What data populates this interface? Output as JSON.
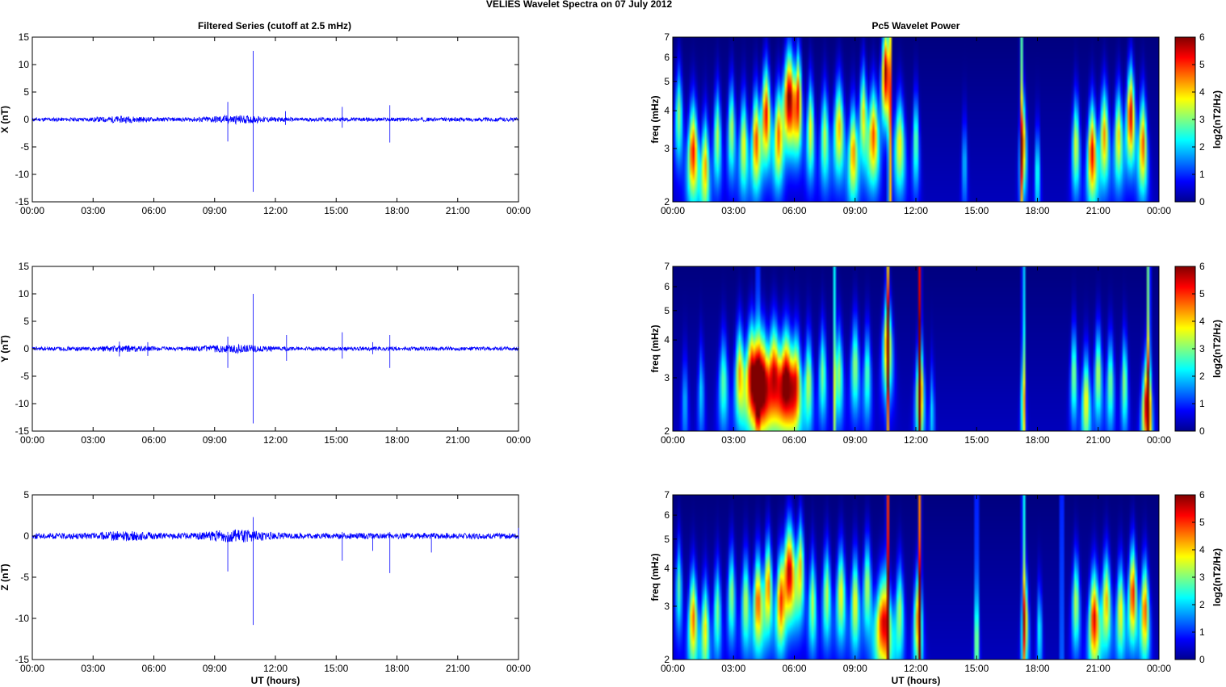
{
  "figure": {
    "title": "VELIES Wavelet Spectra on 07 July      2012"
  },
  "chart_data": [
    {
      "type": "line",
      "title": "Filtered Series (cutoff at 2.5 mHz)",
      "ylabel": "X (nT)",
      "xlabel": "",
      "xticks": [
        "00:00",
        "03:00",
        "06:00",
        "09:00",
        "12:00",
        "15:00",
        "18:00",
        "21:00",
        "00:00"
      ],
      "xlim": [
        0,
        24
      ],
      "ylim": [
        -15,
        15
      ],
      "yticks": [
        -15,
        -10,
        -5,
        0,
        5,
        10,
        15
      ],
      "color": "#0000ff",
      "grid": false,
      "noise_amplitude": 0.35,
      "spikes": [
        {
          "x": 9.65,
          "top": 3.2,
          "bottom": -4.0
        },
        {
          "x": 10.9,
          "top": 12.5,
          "bottom": -13.2
        },
        {
          "x": 12.5,
          "top": 1.5,
          "bottom": -1.0
        },
        {
          "x": 15.3,
          "top": 2.3,
          "bottom": -1.5
        },
        {
          "x": 17.65,
          "top": 2.6,
          "bottom": -4.2
        }
      ]
    },
    {
      "type": "line",
      "title": "",
      "ylabel": "Y (nT)",
      "xlabel": "",
      "xticks": [
        "00:00",
        "03:00",
        "06:00",
        "09:00",
        "12:00",
        "15:00",
        "18:00",
        "21:00",
        "00:00"
      ],
      "xlim": [
        0,
        24
      ],
      "ylim": [
        -15,
        15
      ],
      "yticks": [
        -15,
        -10,
        -5,
        0,
        5,
        10,
        15
      ],
      "color": "#0000ff",
      "grid": false,
      "noise_amplitude": 0.35,
      "spikes": [
        {
          "x": 4.3,
          "top": 1.3,
          "bottom": -1.4
        },
        {
          "x": 5.7,
          "top": 1.2,
          "bottom": -1.3
        },
        {
          "x": 9.65,
          "top": 2.2,
          "bottom": -3.5
        },
        {
          "x": 10.9,
          "top": 10.0,
          "bottom": -13.6
        },
        {
          "x": 12.55,
          "top": 2.5,
          "bottom": -2.2
        },
        {
          "x": 15.3,
          "top": 3.0,
          "bottom": -1.8
        },
        {
          "x": 16.8,
          "top": 1.2,
          "bottom": -1.0
        },
        {
          "x": 17.65,
          "top": 2.5,
          "bottom": -3.5
        }
      ]
    },
    {
      "type": "line",
      "title": "",
      "ylabel": "Z (nT)",
      "xlabel": "UT (hours)",
      "xticks": [
        "00:00",
        "03:00",
        "06:00",
        "09:00",
        "12:00",
        "15:00",
        "18:00",
        "21:00",
        "00:00"
      ],
      "xlim": [
        0,
        24
      ],
      "ylim": [
        -15,
        5
      ],
      "yticks": [
        -15,
        -10,
        -5,
        0,
        5
      ],
      "color": "#0000ff",
      "grid": false,
      "noise_amplitude": 0.35,
      "spikes": [
        {
          "x": 9.65,
          "top": 0.5,
          "bottom": -4.3
        },
        {
          "x": 10.9,
          "top": 2.3,
          "bottom": -10.8
        },
        {
          "x": 15.3,
          "top": 0.5,
          "bottom": -3.0
        },
        {
          "x": 16.8,
          "top": 0.3,
          "bottom": -1.8
        },
        {
          "x": 17.65,
          "top": 0.5,
          "bottom": -4.5
        },
        {
          "x": 19.7,
          "top": 0.3,
          "bottom": -2.0
        },
        {
          "x": 24.0,
          "top": 1.0,
          "bottom": -0.3
        }
      ]
    },
    {
      "type": "heatmap",
      "title": "Pc5 Wavelet Power",
      "ylabel": "freq (mHz)",
      "xlabel": "",
      "xticks": [
        "00:00",
        "03:00",
        "06:00",
        "09:00",
        "12:00",
        "15:00",
        "18:00",
        "21:00",
        "00:00"
      ],
      "xlim": [
        0,
        24
      ],
      "ylim": [
        2,
        7
      ],
      "yscale": "log",
      "yticks": [
        2,
        3,
        4,
        5,
        6,
        7
      ],
      "colorbar": {
        "label": "log2(nT2/Hz)",
        "ticks": [
          0,
          1,
          2,
          3,
          4,
          5,
          6
        ],
        "range": [
          0,
          6
        ],
        "colormap": "jet"
      },
      "blobs": [
        [
          0.3,
          4.0,
          0.18,
          3.0
        ],
        [
          1.0,
          3.0,
          0.25,
          5.0
        ],
        [
          1.6,
          2.7,
          0.2,
          4.0
        ],
        [
          2.2,
          3.4,
          0.18,
          3.2
        ],
        [
          2.9,
          3.6,
          0.18,
          3.2
        ],
        [
          3.5,
          3.2,
          0.2,
          3.6
        ],
        [
          4.1,
          3.3,
          0.2,
          4.6
        ],
        [
          4.6,
          4.0,
          0.22,
          5.2
        ],
        [
          5.2,
          3.4,
          0.2,
          4.0
        ],
        [
          5.75,
          4.5,
          0.3,
          6.0
        ],
        [
          6.2,
          4.6,
          0.16,
          4.5
        ],
        [
          6.8,
          3.6,
          0.18,
          3.6
        ],
        [
          7.5,
          3.4,
          0.2,
          3.2
        ],
        [
          8.2,
          3.6,
          0.25,
          4.0
        ],
        [
          8.9,
          3.0,
          0.22,
          4.2
        ],
        [
          9.4,
          4.0,
          0.18,
          3.8
        ],
        [
          9.9,
          3.4,
          0.25,
          4.6
        ],
        [
          10.5,
          5.5,
          0.18,
          5.8
        ],
        [
          11.2,
          3.2,
          0.25,
          3.6
        ],
        [
          12.0,
          3.3,
          0.15,
          2.8
        ],
        [
          14.4,
          2.8,
          0.12,
          1.8
        ],
        [
          17.3,
          3.2,
          0.15,
          4.2
        ],
        [
          18.0,
          2.6,
          0.12,
          2.4
        ],
        [
          19.9,
          3.2,
          0.18,
          3.4
        ],
        [
          20.7,
          3.0,
          0.22,
          5.2
        ],
        [
          21.3,
          3.4,
          0.22,
          4.2
        ],
        [
          22.0,
          3.4,
          0.2,
          3.8
        ],
        [
          22.6,
          4.0,
          0.2,
          5.4
        ],
        [
          23.2,
          3.2,
          0.2,
          4.6
        ]
      ],
      "ridges": [
        [
          10.7,
          5.5
        ],
        [
          17.2,
          3.0
        ]
      ]
    },
    {
      "type": "heatmap",
      "title": "",
      "ylabel": "freq (mHz)",
      "xlabel": "",
      "xticks": [
        "00:00",
        "03:00",
        "06:00",
        "09:00",
        "12:00",
        "15:00",
        "18:00",
        "21:00",
        "00:00"
      ],
      "xlim": [
        0,
        24
      ],
      "ylim": [
        2,
        7
      ],
      "yscale": "log",
      "yticks": [
        2,
        3,
        4,
        5,
        6,
        7
      ],
      "colorbar": {
        "label": "log2(nT2/Hz)",
        "ticks": [
          0,
          1,
          2,
          3,
          4,
          5,
          6
        ],
        "range": [
          0,
          6
        ],
        "colormap": "jet"
      },
      "blobs": [
        [
          0.6,
          2.6,
          0.15,
          1.6
        ],
        [
          1.4,
          2.8,
          0.15,
          1.8
        ],
        [
          2.5,
          3.0,
          0.22,
          2.6
        ],
        [
          3.3,
          3.2,
          0.22,
          4.0
        ],
        [
          3.9,
          3.2,
          0.3,
          5.4
        ],
        [
          4.4,
          3.0,
          0.35,
          6.2
        ],
        [
          5.0,
          3.2,
          0.3,
          5.0
        ],
        [
          5.6,
          3.0,
          0.35,
          6.2
        ],
        [
          6.1,
          3.0,
          0.25,
          4.2
        ],
        [
          6.7,
          3.0,
          0.2,
          3.2
        ],
        [
          7.4,
          3.2,
          0.18,
          2.8
        ],
        [
          8.2,
          3.2,
          0.2,
          3.0
        ],
        [
          9.0,
          3.4,
          0.2,
          3.0
        ],
        [
          9.6,
          3.2,
          0.18,
          2.6
        ],
        [
          10.6,
          4.0,
          0.22,
          4.4
        ],
        [
          12.2,
          2.8,
          0.2,
          4.2
        ],
        [
          12.8,
          2.4,
          0.12,
          1.8
        ],
        [
          17.3,
          2.6,
          0.12,
          2.2
        ],
        [
          19.8,
          3.2,
          0.15,
          3.0
        ],
        [
          20.4,
          2.6,
          0.2,
          3.6
        ],
        [
          21.0,
          3.2,
          0.18,
          3.2
        ],
        [
          21.6,
          3.0,
          0.18,
          2.8
        ],
        [
          22.3,
          3.0,
          0.15,
          3.0
        ],
        [
          23.4,
          2.5,
          0.22,
          5.6
        ]
      ],
      "ridges": [
        [
          4.2,
          2.5
        ],
        [
          8.0,
          2.5
        ],
        [
          10.6,
          4.0
        ],
        [
          12.2,
          6.0
        ],
        [
          17.3,
          3.0
        ],
        [
          23.5,
          4.5
        ]
      ]
    },
    {
      "type": "heatmap",
      "title": "",
      "ylabel": "freq (mHz)",
      "xlabel": "UT (hours)",
      "xticks": [
        "00:00",
        "03:00",
        "06:00",
        "09:00",
        "12:00",
        "15:00",
        "18:00",
        "21:00",
        "00:00"
      ],
      "xlim": [
        0,
        24
      ],
      "ylim": [
        2,
        7
      ],
      "yscale": "log",
      "yticks": [
        2,
        3,
        4,
        5,
        6,
        7
      ],
      "colorbar": {
        "label": "log2(nT2/Hz)",
        "ticks": [
          0,
          1,
          2,
          3,
          4,
          5,
          6
        ],
        "range": [
          0,
          6
        ],
        "colormap": "jet"
      },
      "blobs": [
        [
          0.3,
          3.6,
          0.15,
          2.6
        ],
        [
          1.0,
          2.8,
          0.22,
          4.4
        ],
        [
          1.6,
          2.6,
          0.2,
          3.6
        ],
        [
          2.2,
          3.0,
          0.18,
          2.8
        ],
        [
          2.9,
          3.4,
          0.18,
          3.0
        ],
        [
          3.6,
          3.2,
          0.2,
          3.2
        ],
        [
          4.2,
          3.2,
          0.22,
          4.6
        ],
        [
          4.7,
          3.6,
          0.2,
          4.4
        ],
        [
          5.3,
          3.2,
          0.2,
          3.8
        ],
        [
          5.75,
          4.0,
          0.3,
          5.6
        ],
        [
          6.3,
          4.2,
          0.18,
          3.8
        ],
        [
          6.9,
          3.2,
          0.18,
          3.2
        ],
        [
          7.6,
          3.4,
          0.2,
          3.2
        ],
        [
          8.3,
          3.4,
          0.22,
          3.6
        ],
        [
          9.0,
          3.2,
          0.2,
          3.6
        ],
        [
          9.6,
          3.6,
          0.2,
          3.2
        ],
        [
          10.4,
          2.7,
          0.4,
          5.2
        ],
        [
          11.2,
          3.0,
          0.2,
          3.0
        ],
        [
          12.1,
          2.8,
          0.2,
          4.2
        ],
        [
          15.0,
          2.4,
          0.12,
          2.0
        ],
        [
          17.4,
          2.8,
          0.15,
          3.8
        ],
        [
          18.1,
          2.6,
          0.12,
          2.2
        ],
        [
          19.9,
          3.2,
          0.18,
          3.2
        ],
        [
          20.8,
          2.8,
          0.25,
          5.2
        ],
        [
          21.4,
          3.2,
          0.22,
          4.0
        ],
        [
          22.1,
          3.0,
          0.2,
          3.6
        ],
        [
          22.7,
          3.4,
          0.2,
          5.0
        ],
        [
          23.3,
          3.0,
          0.2,
          4.6
        ]
      ],
      "ridges": [
        [
          10.6,
          5.5
        ],
        [
          12.2,
          5.0
        ],
        [
          15.0,
          2.5
        ],
        [
          17.3,
          3.5
        ],
        [
          19.2,
          2.5
        ]
      ]
    }
  ]
}
